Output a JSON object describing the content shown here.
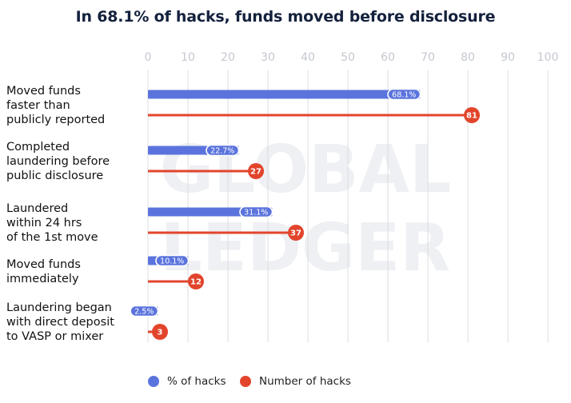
{
  "title": "In 68.1% of hacks, funds moved before disclosure",
  "watermark": {
    "line1": "GLOBAL",
    "line2": "LEDGER"
  },
  "colors": {
    "percent_bar": "#5b74dd",
    "count_bar": "#e2452c",
    "gridline": "#d9dce2",
    "tick_text": "#c4c8cf",
    "title": "#14213d"
  },
  "legend": [
    {
      "label": "% of hacks",
      "color": "#5b74dd"
    },
    {
      "label": "Number of hacks",
      "color": "#e2452c"
    }
  ],
  "chart_data": {
    "type": "bar",
    "orientation": "horizontal",
    "title": "In 68.1% of hacks, funds moved before disclosure",
    "categories": [
      [
        "Moved funds",
        "faster than",
        "publicly reported"
      ],
      [
        "Completed",
        "laundering before",
        "public disclosure"
      ],
      [
        "Laundered",
        "within 24 hrs",
        "of the 1st move"
      ],
      [
        "Moved funds",
        "immediately"
      ],
      [
        "Laundering began",
        "with direct deposit",
        "to VASP or mixer"
      ]
    ],
    "series": [
      {
        "name": "% of hacks",
        "values": [
          68.1,
          22.7,
          31.1,
          10.1,
          2.5
        ],
        "labels": [
          "68.1%",
          "22.7%",
          "31.1%",
          "10.1%",
          "2.5%"
        ]
      },
      {
        "name": "Number of hacks",
        "values": [
          81,
          27,
          37,
          12,
          3
        ],
        "labels": [
          "81",
          "27",
          "37",
          "12",
          "3"
        ]
      }
    ],
    "xlim": [
      0,
      100
    ],
    "xticks": [
      0,
      10,
      20,
      30,
      40,
      50,
      60,
      70,
      80,
      90,
      100
    ],
    "xtick_labels": [
      "0",
      "10",
      "20",
      "30",
      "40",
      "50",
      "60",
      "70",
      "80",
      "90",
      "100"
    ],
    "xaxis_position": "top",
    "grid": true,
    "legend_position": "bottom"
  }
}
